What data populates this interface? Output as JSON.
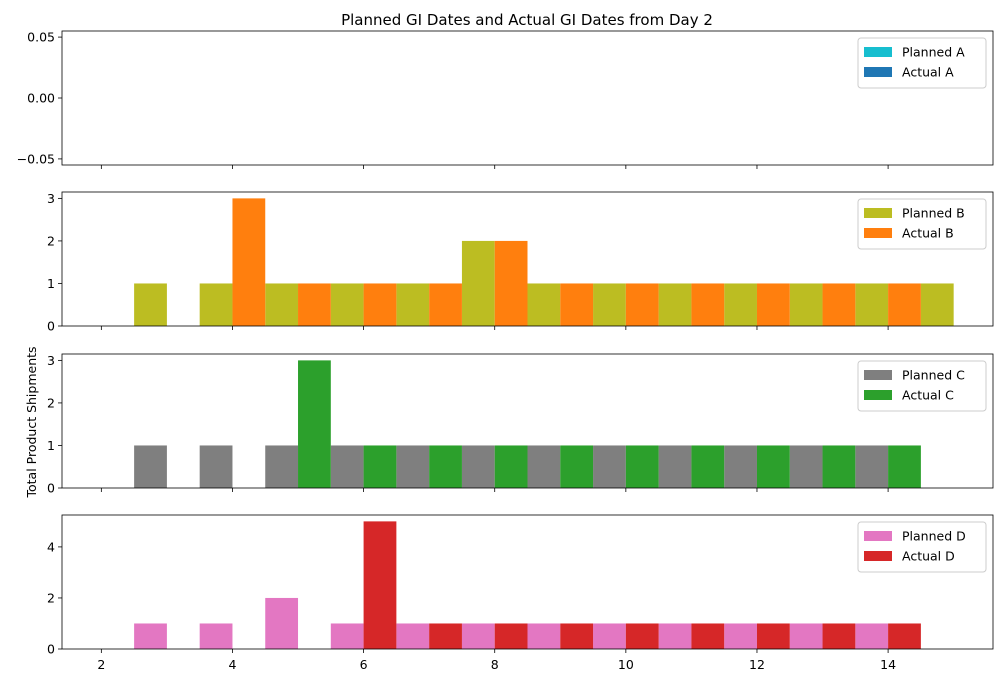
{
  "chart_data": {
    "type": "bar",
    "title": "Planned GI Dates and Actual GI Dates from Day 2",
    "ylabel": "Total Product Shipments",
    "xlabel": "",
    "x_ticks": [
      "2",
      "4",
      "6",
      "8",
      "10",
      "12",
      "14"
    ],
    "xlim": [
      1.4,
      15.6
    ],
    "bar_width": 0.5,
    "legend_position": "upper-right",
    "grid": false,
    "panels": [
      {
        "ylim": [
          -0.055,
          0.055
        ],
        "y_ticks": [
          "−0.05",
          "0.00",
          "0.05"
        ],
        "y_tick_values": [
          -0.05,
          0.0,
          0.05
        ],
        "series": [
          {
            "name": "Planned A",
            "color": "#17becf",
            "x": [],
            "values": []
          },
          {
            "name": "Actual A",
            "color": "#1f77b4",
            "x": [],
            "values": []
          }
        ]
      },
      {
        "ylim": [
          0,
          3.15
        ],
        "y_ticks": [
          "0",
          "1",
          "2",
          "3"
        ],
        "y_tick_values": [
          0,
          1,
          2,
          3
        ],
        "series": [
          {
            "name": "Planned B",
            "color": "#bcbd22",
            "x": [
              2.75,
              3.75,
              4.75,
              5.75,
              6.75,
              7.75,
              8.75,
              9.75,
              10.75,
              11.75,
              12.75,
              13.75,
              14.75
            ],
            "values": [
              1,
              1,
              1,
              1,
              1,
              2,
              1,
              1,
              1,
              1,
              1,
              1,
              1
            ]
          },
          {
            "name": "Actual B",
            "color": "#ff7f0e",
            "x": [
              4.25,
              5.25,
              6.25,
              7.25,
              8.25,
              9.25,
              10.25,
              11.25,
              12.25,
              13.25,
              14.25
            ],
            "values": [
              3,
              1,
              1,
              1,
              2,
              1,
              1,
              1,
              1,
              1,
              1
            ]
          }
        ]
      },
      {
        "ylim": [
          0,
          3.15
        ],
        "y_ticks": [
          "0",
          "1",
          "2",
          "3"
        ],
        "y_tick_values": [
          0,
          1,
          2,
          3
        ],
        "series": [
          {
            "name": "Planned C",
            "color": "#7f7f7f",
            "x": [
              2.75,
              3.75,
              4.75,
              5.75,
              6.75,
              7.75,
              8.75,
              9.75,
              10.75,
              11.75,
              12.75,
              13.75
            ],
            "values": [
              1,
              1,
              1,
              1,
              1,
              1,
              1,
              1,
              1,
              1,
              1,
              1
            ]
          },
          {
            "name": "Actual C",
            "color": "#2ca02c",
            "x": [
              5.25,
              6.25,
              7.25,
              8.25,
              9.25,
              10.25,
              11.25,
              12.25,
              13.25,
              14.25
            ],
            "values": [
              3,
              1,
              1,
              1,
              1,
              1,
              1,
              1,
              1,
              1
            ]
          }
        ]
      },
      {
        "ylim": [
          0,
          5.25
        ],
        "y_ticks": [
          "0",
          "2",
          "4"
        ],
        "y_tick_values": [
          0,
          2,
          4
        ],
        "series": [
          {
            "name": "Planned D",
            "color": "#e377c2",
            "x": [
              2.75,
              3.75,
              4.75,
              5.75,
              6.75,
              7.75,
              8.75,
              9.75,
              10.75,
              11.75,
              12.75,
              13.75
            ],
            "values": [
              1,
              1,
              2,
              1,
              1,
              1,
              1,
              1,
              1,
              1,
              1,
              1
            ]
          },
          {
            "name": "Actual D",
            "color": "#d62728",
            "x": [
              6.25,
              7.25,
              8.25,
              9.25,
              10.25,
              11.25,
              12.25,
              13.25,
              14.25
            ],
            "values": [
              5,
              1,
              1,
              1,
              1,
              1,
              1,
              1,
              1
            ]
          }
        ]
      }
    ]
  }
}
